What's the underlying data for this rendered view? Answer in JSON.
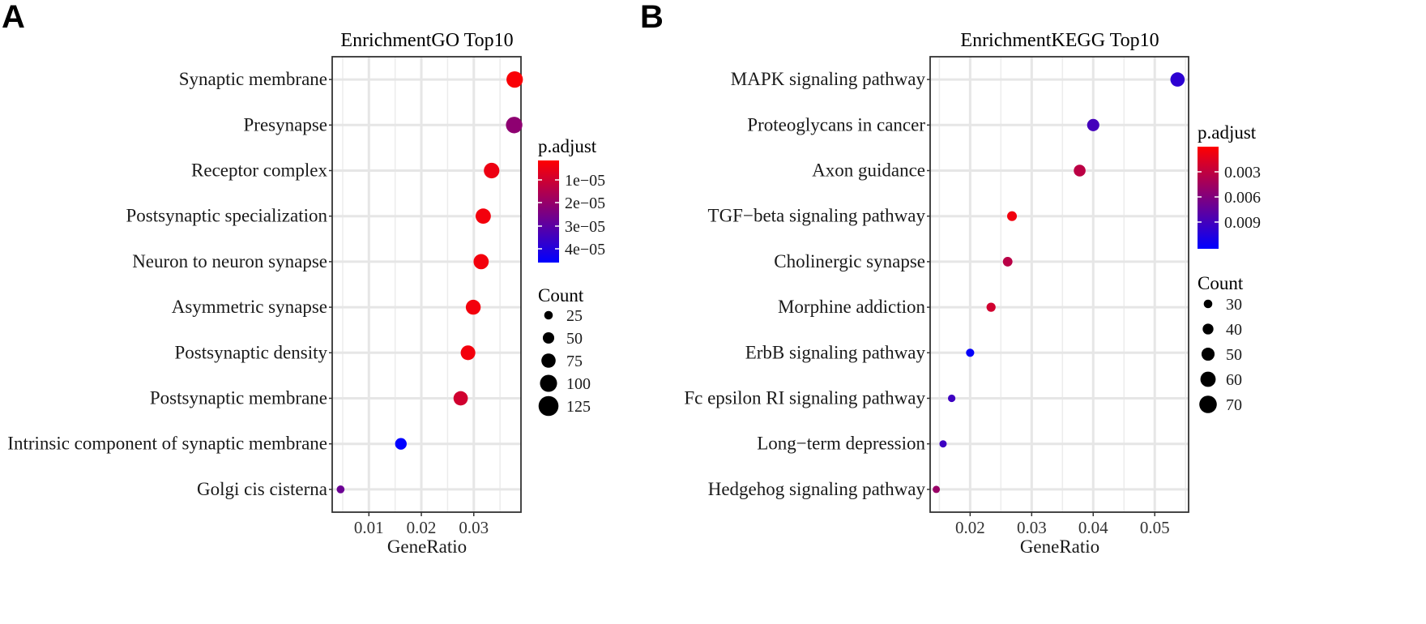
{
  "panels": [
    {
      "letter": "A",
      "colors": [
        "#ff0000",
        "#0000ff"
      ],
      "legend_color_title": "p.adjust",
      "legend_color_ticks": [
        "1e−05",
        "2e−05",
        "3e−05",
        "4e−05"
      ],
      "legend_size_title": "Count",
      "legend_size_labels": [
        "25",
        "50",
        "75",
        "100",
        "125"
      ]
    },
    {
      "letter": "B",
      "colors": [
        "#ff0000",
        "#0000ff"
      ],
      "legend_color_title": "p.adjust",
      "legend_color_ticks": [
        "0.003",
        "0.006",
        "0.009"
      ],
      "legend_size_title": "Count",
      "legend_size_labels": [
        "30",
        "40",
        "50",
        "60",
        "70"
      ]
    }
  ],
  "chart_data": [
    {
      "type": "scatter",
      "title": "EnrichmentGO Top10",
      "xlabel": "GeneRatio",
      "ylabel": "",
      "xlim": [
        0.003,
        0.039
      ],
      "xticks": [
        0.01,
        0.02,
        0.03
      ],
      "xtick_labels": [
        "0.01",
        "0.02",
        "0.03"
      ],
      "color_var": "p.adjust",
      "color_range": [
        3e-06,
        4.6e-05
      ],
      "size_var": "Count",
      "size_range": [
        10,
        135
      ],
      "terms": [
        "Synaptic membrane",
        "Presynapse",
        "Receptor complex",
        "Postsynaptic specialization",
        "Neuron to neuron synapse",
        "Asymmetric synapse",
        "Postsynaptic density",
        "Postsynaptic membrane",
        "Intrinsic component of synaptic membrane",
        "Golgi cis cisterna"
      ],
      "gene_ratio": [
        0.0378,
        0.0377,
        0.0334,
        0.0318,
        0.0314,
        0.0299,
        0.0289,
        0.0275,
        0.0161,
        0.0046
      ],
      "count": [
        125,
        125,
        110,
        105,
        104,
        99,
        96,
        91,
        53,
        15
      ],
      "p_adjust": [
        4e-06,
        2.2e-05,
        6e-06,
        5e-06,
        5e-06,
        5e-06,
        5e-06,
        1.1e-05,
        4.6e-05,
        2.8e-05
      ]
    },
    {
      "type": "scatter",
      "title": "EnrichmentKEGG Top10",
      "xlabel": "GeneRatio",
      "ylabel": "",
      "xlim": [
        0.0135,
        0.0555
      ],
      "xticks": [
        0.02,
        0.03,
        0.04,
        0.05
      ],
      "xtick_labels": [
        "0.02",
        "0.03",
        "0.04",
        "0.05"
      ],
      "color_var": "p.adjust",
      "color_range": [
        0.0002,
        0.0115
      ],
      "size_var": "Count",
      "size_range": [
        22,
        75
      ],
      "terms": [
        "MAPK signaling pathway",
        "Proteoglycans in cancer",
        "Axon guidance",
        "TGF−beta signaling pathway",
        "Cholinergic synapse",
        "Morphine addiction",
        "ErbB signaling pathway",
        "Fc epsilon RI signaling pathway",
        "Long−term depression",
        "Hedgehog signaling pathway"
      ],
      "gene_ratio": [
        0.0537,
        0.04,
        0.0378,
        0.0268,
        0.0261,
        0.0234,
        0.02,
        0.017,
        0.0156,
        0.0145
      ],
      "count": [
        72,
        54,
        51,
        36,
        35,
        32,
        27,
        23,
        21,
        20
      ],
      "p_adjust": [
        0.0095,
        0.0085,
        0.0032,
        0.0008,
        0.0033,
        0.0023,
        0.0113,
        0.0088,
        0.0088,
        0.0047
      ]
    }
  ]
}
